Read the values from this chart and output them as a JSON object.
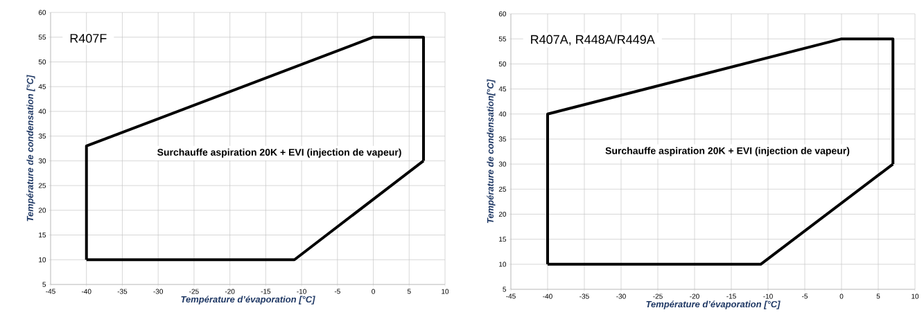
{
  "chart_data": [
    {
      "type": "line",
      "title": "R407F",
      "xlabel": "Température d’évaporation [°C]",
      "ylabel": "Température de condensation [°C]",
      "annotations": [
        "Surchauffe aspiration 20K  + EVI (injection de vapeur)"
      ],
      "series": [
        {
          "color": "#000000",
          "x": [
            -40,
            -40,
            0,
            7,
            7
          ],
          "values": [
            10,
            33,
            55,
            55,
            30
          ]
        },
        {
          "color": "#000000",
          "x": [
            7,
            -11,
            -40
          ],
          "values": [
            30,
            10,
            10
          ]
        }
      ],
      "xlim": [
        -45,
        10
      ],
      "ylim": [
        5,
        60
      ],
      "xticks": [
        -45,
        -40,
        -35,
        -30,
        -25,
        -20,
        -15,
        -10,
        -5,
        0,
        5,
        10
      ],
      "yticks": [
        5,
        10,
        15,
        20,
        25,
        30,
        35,
        40,
        45,
        50,
        55,
        60
      ],
      "grid": true,
      "line_style": "solid"
    },
    {
      "type": "line",
      "title": "R407A, R448A/R449A",
      "xlabel": "Température d’évaporation [°C]",
      "ylabel": "Température de condensation[°C]",
      "annotations": [
        "Surchauffe aspiration 20K  + EVI (injection de vapeur)"
      ],
      "series": [
        {
          "color": "#000000",
          "x": [
            -40,
            -40,
            0,
            7,
            7
          ],
          "values": [
            10,
            40,
            55,
            55,
            30
          ]
        },
        {
          "color": "#000000",
          "x": [
            7,
            -11,
            -40
          ],
          "values": [
            30,
            10,
            10
          ]
        }
      ],
      "xlim": [
        -45,
        10
      ],
      "ylim": [
        5,
        60
      ],
      "xticks": [
        -45,
        -40,
        -35,
        -30,
        -25,
        -20,
        -15,
        -10,
        -5,
        0,
        5,
        10
      ],
      "yticks": [
        5,
        10,
        15,
        20,
        25,
        30,
        35,
        40,
        45,
        50,
        55,
        60
      ],
      "grid": true,
      "line_style": "solid"
    }
  ]
}
